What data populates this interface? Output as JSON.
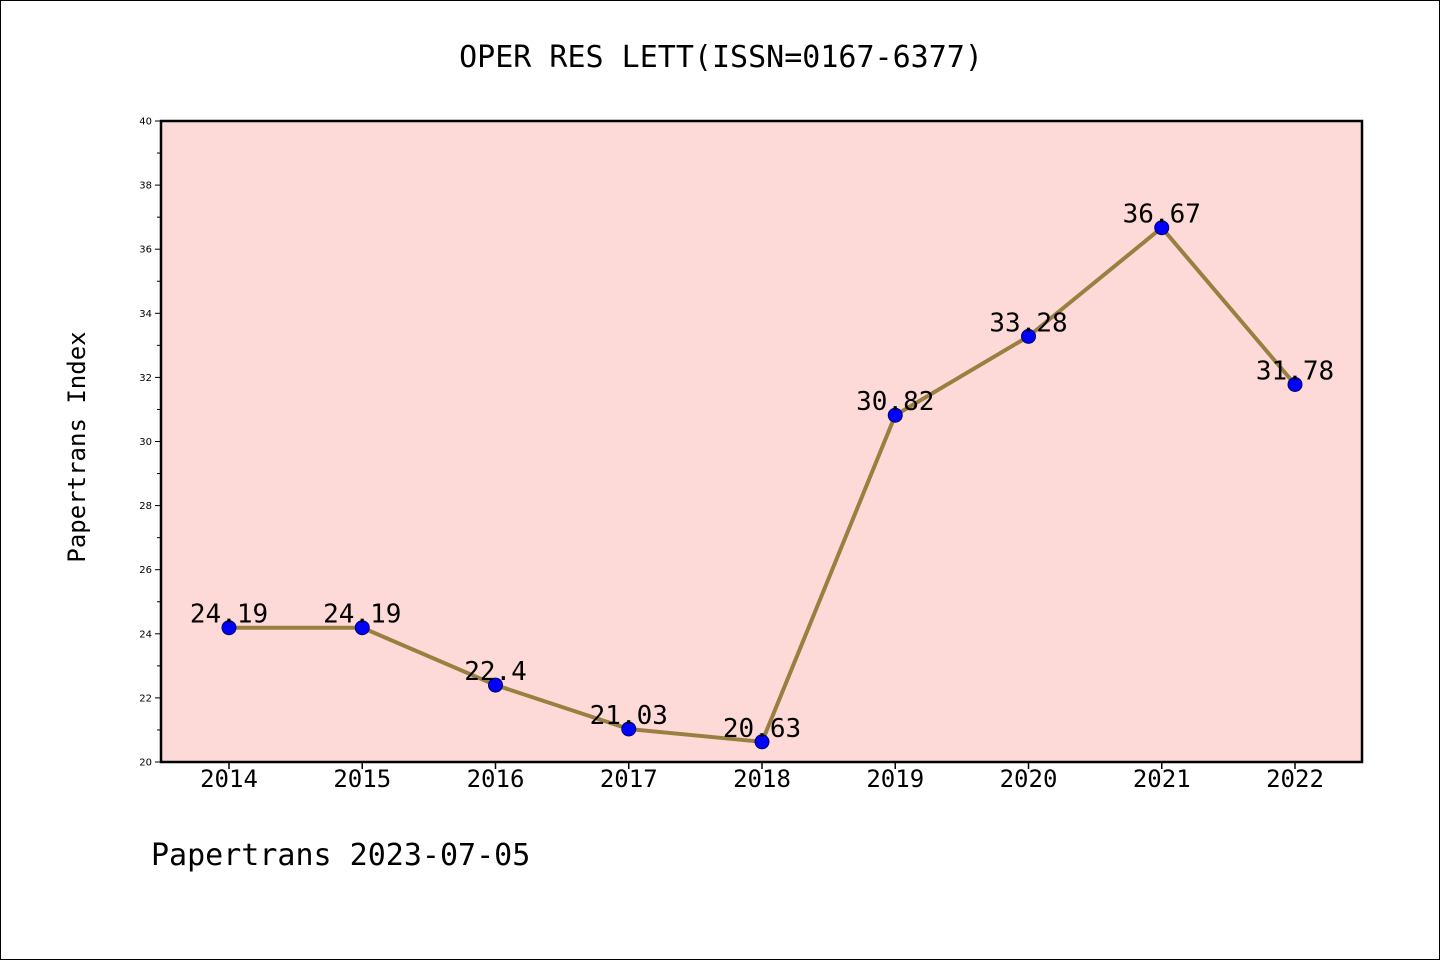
{
  "chart_data": {
    "type": "line",
    "title": "OPER RES LETT(ISSN=0167-6377)",
    "xlabel": "",
    "ylabel": "Papertrans Index",
    "categories": [
      "2014",
      "2015",
      "2016",
      "2017",
      "2018",
      "2019",
      "2020",
      "2021",
      "2022"
    ],
    "values": [
      24.19,
      24.19,
      22.4,
      21.03,
      20.63,
      30.82,
      33.28,
      36.67,
      31.78
    ],
    "data_labels": [
      "24.19",
      "24.19",
      "22.4",
      "21.03",
      "20.63",
      "30.82",
      "33.28",
      "36.67",
      "31.78"
    ],
    "ylim": [
      20,
      40
    ],
    "yticks": [
      "20",
      "22",
      "24",
      "26",
      "28",
      "30",
      "32",
      "34",
      "36",
      "38",
      "40"
    ],
    "grid": false,
    "legend": "none",
    "colors": {
      "plot_background": "#fddad8",
      "line": "#9a8040",
      "marker": "#0000ff",
      "axis": "#000000"
    }
  },
  "footer": {
    "text": "Papertrans 2023-07-05"
  }
}
